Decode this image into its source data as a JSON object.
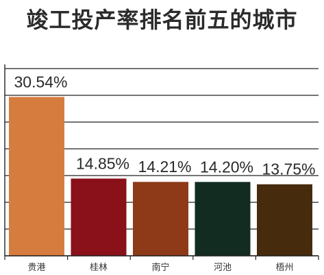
{
  "chart_data": {
    "type": "bar",
    "title": "竣工投产率排名前五的城市",
    "categories": [
      "贵港",
      "桂林",
      "南宁",
      "河池",
      "梧州"
    ],
    "values": [
      30.54,
      14.85,
      14.21,
      14.2,
      13.75
    ],
    "value_labels": [
      "30.54%",
      "14.85%",
      "14.21%",
      "14.20%",
      "13.75%"
    ],
    "colors": [
      "#d77c3f",
      "#8a1119",
      "#8e3a18",
      "#122c22",
      "#462b0c"
    ],
    "ylim": [
      0,
      36
    ],
    "grid": true,
    "xlabel": "",
    "ylabel": ""
  }
}
